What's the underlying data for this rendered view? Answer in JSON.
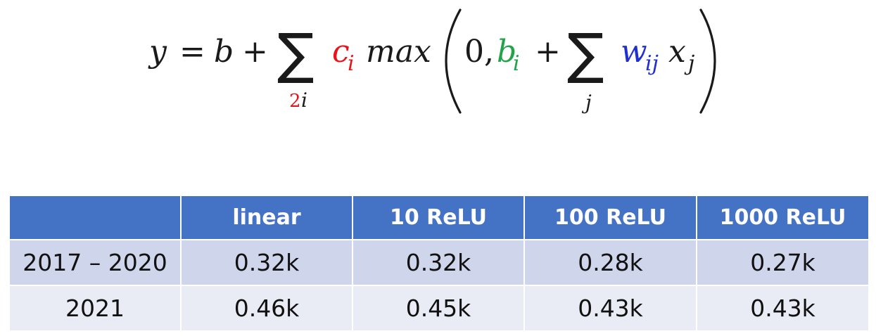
{
  "formula": {
    "y": "y",
    "equals": "=",
    "b": "b",
    "plus_1": "+",
    "sum_outer": "∑",
    "sum_outer_sub_num": "2",
    "sum_outer_sub_var": "i",
    "c": "c",
    "c_sub": "i",
    "max": "max",
    "zero_comma": "0,",
    "b_i": "b",
    "b_i_sub": "i",
    "plus_2": "+",
    "sum_inner": "∑",
    "sum_inner_sub": "j",
    "w": "w",
    "w_sub": "ij",
    "x": "x",
    "x_sub": "j",
    "colors": {
      "c_i": "#e8141c",
      "b_i": "#22a34a",
      "w_ij": "#1f2fd0",
      "subscript_2": "#e8141c",
      "text": "#1a1a1a"
    }
  },
  "table": {
    "header_color": "#4472c4",
    "row_colors": [
      "#cfd5ea",
      "#e9ebf5"
    ],
    "headers": [
      "",
      "linear",
      "10 ReLU",
      "100 ReLU",
      "1000 ReLU"
    ],
    "rows": [
      [
        "2017 – 2020",
        "0.32k",
        "0.32k",
        "0.28k",
        "0.27k"
      ],
      [
        "2021",
        "0.46k",
        "0.45k",
        "0.43k",
        "0.43k"
      ]
    ]
  }
}
